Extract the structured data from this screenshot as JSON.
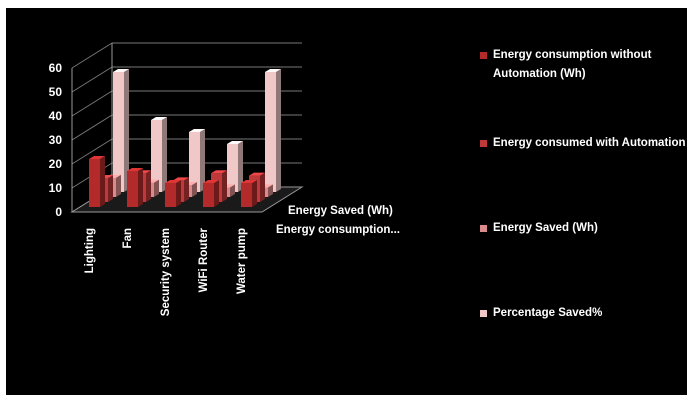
{
  "chart_data": {
    "type": "bar",
    "style": "3d-column",
    "categories": [
      "Lighting",
      "Fan",
      "Security system",
      "WiFi Router",
      "Water pump"
    ],
    "depth_labels": [
      "Energy Saved (Wh)",
      "Energy consumption..."
    ],
    "series": [
      {
        "name": "Energy consumption without Automation (Wh)",
        "color": "#b22a2a",
        "values": [
          20,
          15,
          10,
          10,
          10
        ]
      },
      {
        "name": "Energy consumed with Automation",
        "color": "#c0393a",
        "values": [
          10,
          12,
          9,
          12,
          11
        ]
      },
      {
        "name": "Energy Saved (Wh)",
        "color": "#d98a8a",
        "values": [
          8,
          6,
          5,
          4,
          4
        ]
      },
      {
        "name": "Percentage Saved%",
        "color": "#f0c8c8",
        "values": [
          50,
          30,
          25,
          20,
          50
        ]
      }
    ],
    "yticks": [
      0,
      10,
      20,
      30,
      40,
      50,
      60
    ],
    "ylim": [
      0,
      60
    ],
    "legend_position": "right"
  }
}
